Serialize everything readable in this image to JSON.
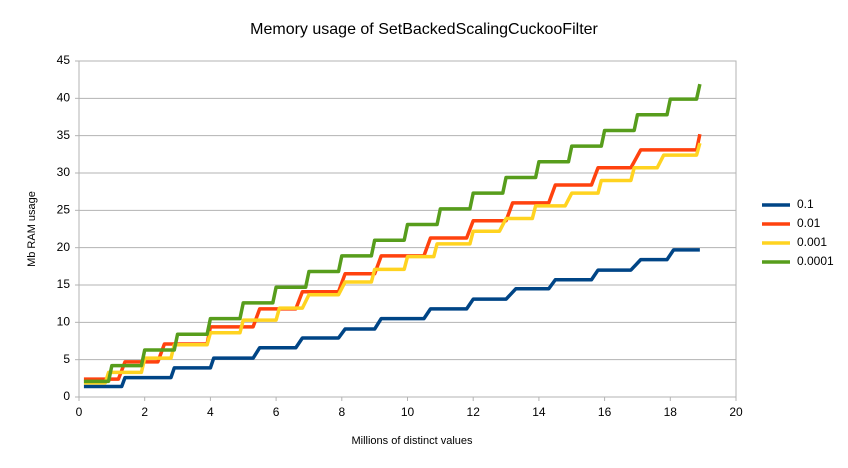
{
  "chart_data": {
    "type": "line",
    "title": "Memory usage of SetBackedScalingCuckooFilter",
    "x_label": "Millions of distinct values",
    "y_label": "Mb RAM usage",
    "xlim": [
      0,
      20
    ],
    "xticks": [
      0,
      2,
      4,
      6,
      8,
      10,
      12,
      14,
      16,
      18,
      20
    ],
    "ylim": [
      0,
      45
    ],
    "yticks": [
      0,
      5,
      10,
      15,
      20,
      25,
      30,
      35,
      40,
      45
    ],
    "grid": true,
    "legend": "right",
    "series": [
      {
        "name": "0.1",
        "color": "#004586",
        "x": [
          0.15,
          1.3,
          1.4,
          2.8,
          2.9,
          4.0,
          4.1,
          5.3,
          5.5,
          6.6,
          6.8,
          7.9,
          8.1,
          9.0,
          9.2,
          10.5,
          10.7,
          11.8,
          12.0,
          13.0,
          13.3,
          14.3,
          14.5,
          15.6,
          15.8,
          16.8,
          17.1,
          17.9,
          18.1,
          18.9
        ],
        "values": [
          1.4,
          1.4,
          2.6,
          2.6,
          3.9,
          3.9,
          5.2,
          5.2,
          6.6,
          6.6,
          7.9,
          7.9,
          9.1,
          9.1,
          10.5,
          10.5,
          11.8,
          11.8,
          13.1,
          13.1,
          14.5,
          14.5,
          15.7,
          15.7,
          17.0,
          17.0,
          18.4,
          18.4,
          19.7,
          19.7
        ]
      },
      {
        "name": "0.01",
        "color": "#ff420e",
        "x": [
          0.15,
          1.2,
          1.4,
          2.4,
          2.6,
          3.9,
          4.0,
          5.3,
          5.5,
          6.6,
          6.8,
          7.9,
          8.1,
          9.0,
          9.2,
          10.5,
          10.7,
          11.8,
          12.0,
          13.0,
          13.2,
          14.3,
          14.5,
          15.6,
          15.8,
          16.8,
          17.1,
          18.8,
          18.9
        ],
        "values": [
          2.4,
          2.4,
          4.7,
          4.7,
          7.1,
          7.1,
          9.4,
          9.4,
          11.8,
          11.8,
          14.1,
          14.1,
          16.5,
          16.5,
          18.9,
          18.9,
          21.3,
          21.3,
          23.6,
          23.6,
          26.0,
          26.0,
          28.4,
          28.4,
          30.7,
          30.7,
          33.1,
          33.1,
          35.2
        ]
      },
      {
        "name": "0.001",
        "color": "#ffd320",
        "x": [
          0.15,
          0.8,
          0.9,
          1.9,
          2.0,
          2.8,
          2.9,
          3.9,
          4.0,
          4.9,
          5.0,
          6.0,
          6.1,
          6.8,
          7.0,
          7.9,
          8.1,
          8.9,
          9.0,
          9.9,
          10.0,
          10.8,
          10.9,
          11.9,
          12.0,
          12.8,
          13.0,
          13.8,
          13.9,
          14.8,
          15.0,
          15.8,
          15.9,
          16.8,
          16.9,
          17.6,
          17.8,
          18.8,
          18.9
        ],
        "values": [
          1.9,
          1.9,
          3.3,
          3.3,
          5.2,
          5.2,
          7.0,
          7.0,
          8.6,
          8.6,
          10.3,
          10.3,
          11.9,
          11.9,
          13.7,
          13.7,
          15.4,
          15.4,
          17.1,
          17.1,
          18.8,
          18.8,
          20.5,
          20.5,
          22.2,
          22.2,
          23.9,
          23.9,
          25.6,
          25.6,
          27.3,
          27.3,
          29.0,
          29.0,
          30.7,
          30.7,
          32.4,
          32.4,
          34.0
        ]
      },
      {
        "name": "0.0001",
        "color": "#579d1c",
        "x": [
          0.15,
          0.9,
          1.0,
          1.9,
          2.0,
          2.9,
          3.0,
          3.9,
          4.0,
          4.9,
          5.0,
          5.9,
          6.0,
          6.9,
          7.0,
          7.9,
          8.0,
          8.9,
          9.0,
          9.9,
          10.0,
          10.9,
          11.0,
          11.9,
          12.0,
          12.9,
          13.0,
          13.9,
          14.0,
          14.9,
          15.0,
          15.9,
          16.0,
          16.9,
          17.0,
          17.9,
          18.0,
          18.8,
          18.9
        ],
        "values": [
          2.1,
          2.1,
          4.2,
          4.2,
          6.3,
          6.3,
          8.4,
          8.4,
          10.5,
          10.5,
          12.6,
          12.6,
          14.7,
          14.7,
          16.8,
          16.8,
          18.9,
          18.9,
          21.0,
          21.0,
          23.1,
          23.1,
          25.2,
          25.2,
          27.3,
          27.3,
          29.4,
          29.4,
          31.5,
          31.5,
          33.6,
          33.6,
          35.7,
          35.7,
          37.8,
          37.8,
          39.9,
          39.9,
          41.9
        ]
      }
    ]
  }
}
